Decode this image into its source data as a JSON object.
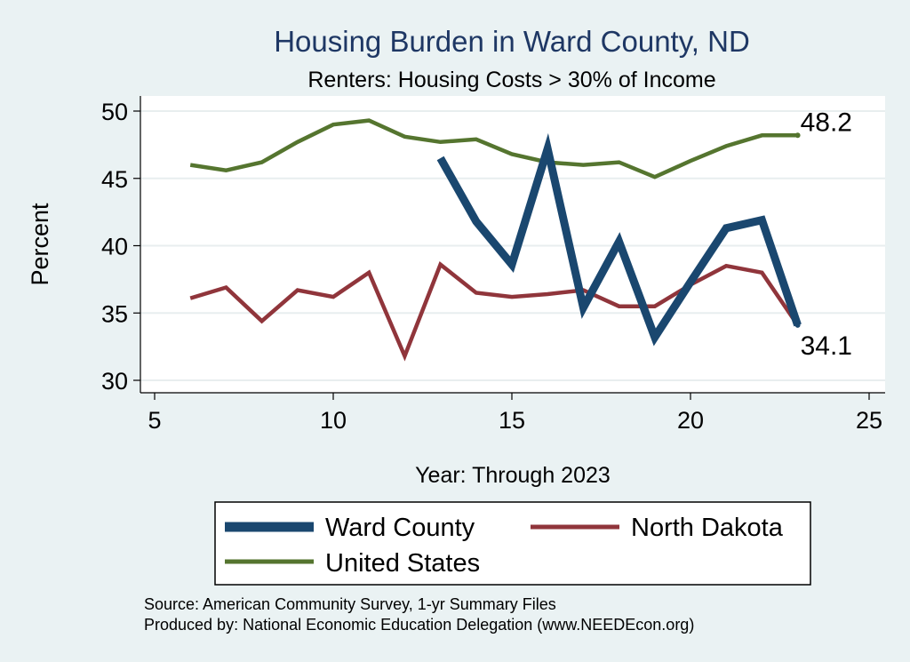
{
  "chart_data": {
    "type": "line",
    "title": "Housing Burden in Ward County, ND",
    "subtitle": "Renters: Housing Costs > 30% of Income",
    "xlabel": "Year: Through 2023",
    "ylabel": "Percent",
    "xlim": [
      5,
      25
    ],
    "ylim": [
      30,
      50
    ],
    "xticks": [
      5,
      10,
      15,
      20,
      25
    ],
    "yticks": [
      30,
      35,
      40,
      45,
      50
    ],
    "grid": "horizontal",
    "series": [
      {
        "name": "Ward County",
        "color": "#1a476f",
        "x": [
          13,
          14,
          15,
          16,
          17,
          18,
          19,
          20,
          21,
          22,
          23
        ],
        "values": [
          46.5,
          41.8,
          38.6,
          47.2,
          35.4,
          40.3,
          33.2,
          37.3,
          41.3,
          41.9,
          34.1
        ]
      },
      {
        "name": "North Dakota",
        "color": "#90353b",
        "x": [
          6,
          7,
          8,
          9,
          10,
          11,
          12,
          13,
          14,
          15,
          16,
          17,
          18,
          19,
          20,
          21,
          22,
          23
        ],
        "values": [
          36.1,
          36.9,
          34.4,
          36.7,
          36.2,
          38.0,
          31.8,
          38.6,
          36.5,
          36.2,
          36.4,
          36.7,
          35.5,
          35.5,
          37.1,
          38.5,
          38.0,
          34.1
        ]
      },
      {
        "name": "United States",
        "color": "#55752f",
        "x": [
          6,
          7,
          8,
          9,
          10,
          11,
          12,
          13,
          14,
          15,
          16,
          17,
          18,
          19,
          20,
          21,
          22,
          23
        ],
        "values": [
          46.0,
          45.6,
          46.2,
          47.7,
          49.0,
          49.3,
          48.1,
          47.7,
          47.9,
          46.8,
          46.2,
          46.0,
          46.2,
          45.1,
          46.3,
          47.4,
          48.2,
          48.2
        ]
      }
    ],
    "annotations": [
      {
        "text": "48.2",
        "x": 23,
        "y": 48.2,
        "series": "United States"
      },
      {
        "text": "34.1",
        "x": 23,
        "y": 34.1,
        "series": "Ward County"
      }
    ],
    "legend": {
      "placement": "bottom",
      "entries": [
        "Ward County",
        "North Dakota",
        "United States"
      ]
    },
    "notes": [
      "Source: American Community Survey, 1-yr Summary Files",
      "Produced by: National Economic Education Delegation (www.NEEDEcon.org)"
    ]
  }
}
